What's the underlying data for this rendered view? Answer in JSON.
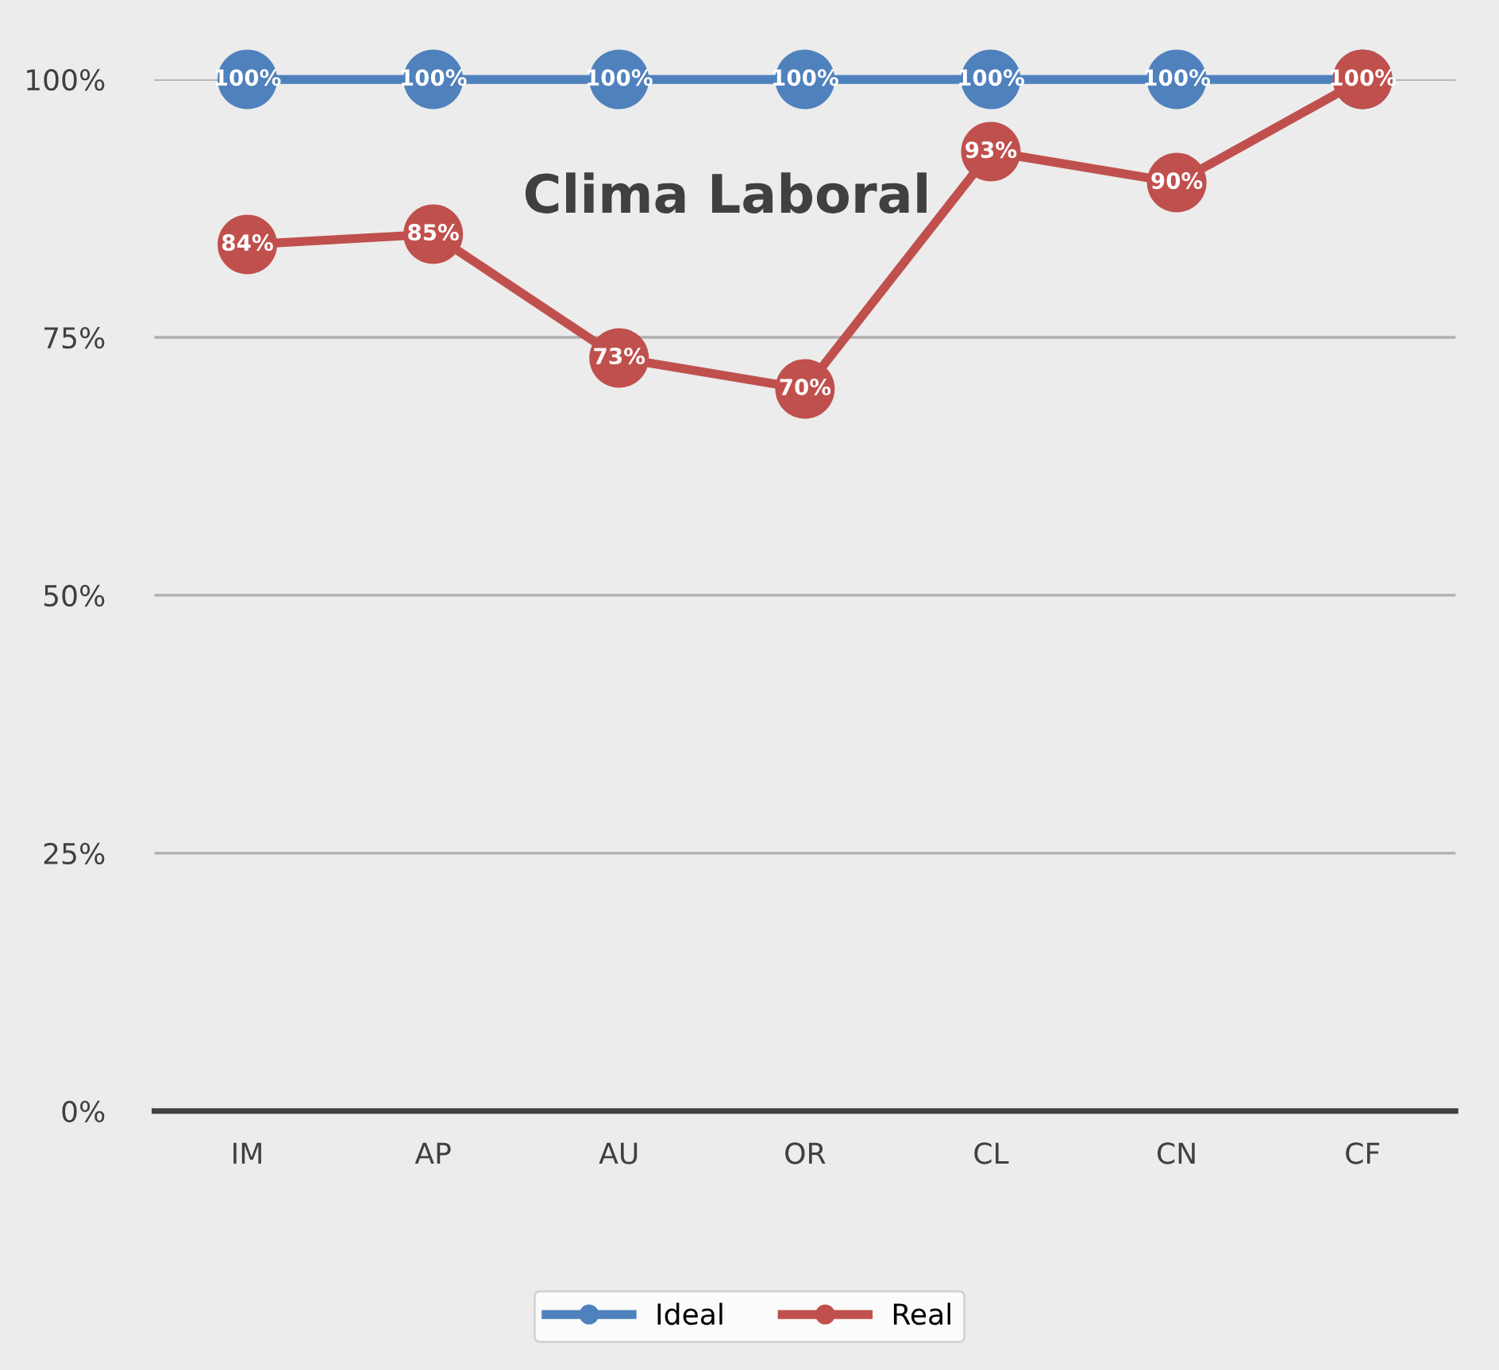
{
  "chart_data": {
    "type": "line",
    "title": "Clima Laboral",
    "categories": [
      "IM",
      "AP",
      "AU",
      "OR",
      "CL",
      "CN",
      "CF"
    ],
    "series": [
      {
        "name": "Ideal",
        "color": "#4f81bd",
        "values": [
          100,
          100,
          100,
          100,
          100,
          100,
          100
        ],
        "value_labels": [
          "100%",
          "100%",
          "100%",
          "100%",
          "100%",
          "100%",
          null
        ]
      },
      {
        "name": "Real",
        "color": "#c0504d",
        "values": [
          84,
          85,
          73,
          70,
          93,
          90,
          100
        ],
        "value_labels": [
          "84%",
          "85%",
          "73%",
          "70%",
          "93%",
          "90%",
          "100%"
        ]
      }
    ],
    "ylim": [
      0,
      100
    ],
    "yticks": [
      {
        "value": 0,
        "label": "0%"
      },
      {
        "value": 25,
        "label": "25%"
      },
      {
        "value": 50,
        "label": "50%"
      },
      {
        "value": 75,
        "label": "75%"
      },
      {
        "value": 100,
        "label": "100%"
      }
    ],
    "grid": "y",
    "legend": "bottom",
    "marker": "circle",
    "line_style": "solid"
  }
}
